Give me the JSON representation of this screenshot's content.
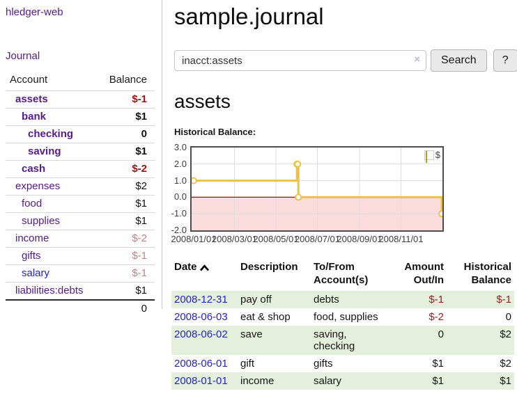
{
  "sidebar": {
    "app_title": "hledger-web",
    "journal_link": "Journal",
    "accounts_table": {
      "headers": [
        "Account",
        "Balance"
      ],
      "rows": [
        {
          "account": "assets",
          "indent": 1,
          "bold": true,
          "balance": "$-1",
          "balance_style": "neg-strong",
          "link": "purple"
        },
        {
          "account": "bank",
          "indent": 2,
          "bold": true,
          "balance": "$1",
          "balance_style": "pos",
          "link": "purple"
        },
        {
          "account": "checking",
          "indent": 3,
          "bold": true,
          "balance": "0",
          "balance_style": "pos",
          "link": "purple"
        },
        {
          "account": "saving",
          "indent": 3,
          "bold": true,
          "balance": "$1",
          "balance_style": "pos",
          "link": "purple"
        },
        {
          "account": "cash",
          "indent": 2,
          "bold": true,
          "balance": "$-2",
          "balance_style": "neg-strong",
          "link": "purple"
        },
        {
          "account": "expenses",
          "indent": 1,
          "bold": false,
          "balance": "$2",
          "balance_style": "pos",
          "link": "purple"
        },
        {
          "account": "food",
          "indent": 2,
          "bold": false,
          "balance": "$1",
          "balance_style": "pos",
          "link": "purple"
        },
        {
          "account": "supplies",
          "indent": 2,
          "bold": false,
          "balance": "$1",
          "balance_style": "pos",
          "link": "purple"
        },
        {
          "account": "income",
          "indent": 1,
          "bold": false,
          "balance": "$-2",
          "balance_style": "neg-soft",
          "link": "purple"
        },
        {
          "account": "gifts",
          "indent": 2,
          "bold": false,
          "balance": "$-1",
          "balance_style": "neg-soft",
          "link": "purple"
        },
        {
          "account": "salary",
          "indent": 2,
          "bold": false,
          "balance": "$-1",
          "balance_style": "neg-soft",
          "link": "blue"
        },
        {
          "account": "liabilities:debts",
          "indent": 1,
          "bold": false,
          "balance": "$1",
          "balance_style": "pos",
          "link": "purple"
        }
      ],
      "total": "0"
    }
  },
  "header": {
    "title": "sample.journal"
  },
  "search": {
    "value": "inacct:assets",
    "clear_icon": "×",
    "button_label": "Search",
    "help_label": "?"
  },
  "account_page": {
    "title": "assets",
    "chart_label": "Historical Balance:"
  },
  "chart_data": {
    "type": "line",
    "style": "step",
    "title": "Historical Balance:",
    "legend_position": "top-right",
    "grid": true,
    "series": [
      {
        "name": "$",
        "color": "#edc240",
        "points": [
          [
            "2008-01-01",
            1
          ],
          [
            "2008-06-01",
            2
          ],
          [
            "2008-06-02",
            2
          ],
          [
            "2008-06-03",
            0
          ],
          [
            "2008-12-31",
            -1
          ]
        ]
      }
    ],
    "ylim": [
      -2,
      3
    ],
    "y_ticks": [
      "3.0",
      "2.0",
      "1.0",
      "0.0",
      "-1.0",
      "-2.0"
    ],
    "x_ticks": [
      {
        "date": "2008-01-01",
        "label": "2008/01/01"
      },
      {
        "date": "2008-03-01",
        "label": "2008/03/01"
      },
      {
        "date": "2008-05-01",
        "label": "2008/05/01"
      },
      {
        "date": "2008-07-01",
        "label": "2008/07/01"
      },
      {
        "date": "2008-09-01",
        "label": "2008/09/01"
      },
      {
        "date": "2008-11-01",
        "label": "2008/11/01"
      }
    ],
    "x_range": [
      "2007-12-29",
      "2009-01-01"
    ],
    "negative_region_fill": "#fadcdc",
    "zero_line_color": "#8c1717",
    "gridline_color": "#dcdcdc"
  },
  "register_table": {
    "headers": [
      {
        "label": "Date",
        "sort_indicator": "ascending"
      },
      {
        "label": "Description"
      },
      {
        "label": "To/From Account(s)"
      },
      {
        "label": "Amount Out/In"
      },
      {
        "label": "Historical Balance"
      }
    ],
    "rows": [
      {
        "date": "2008-12-31",
        "description": "pay off",
        "accounts": "debts",
        "amount": "$-1",
        "amount_neg": true,
        "balance": "$-1",
        "balance_neg": true
      },
      {
        "date": "2008-06-03",
        "description": "eat & shop",
        "accounts": "food, supplies",
        "amount": "$-2",
        "amount_neg": true,
        "balance": "0",
        "balance_neg": false
      },
      {
        "date": "2008-06-02",
        "description": "save",
        "accounts": "saving, checking",
        "amount": "0",
        "amount_neg": false,
        "balance": "$2",
        "balance_neg": false
      },
      {
        "date": "2008-06-01",
        "description": "gift",
        "accounts": "gifts",
        "amount": "$1",
        "amount_neg": false,
        "balance": "$2",
        "balance_neg": false
      },
      {
        "date": "2008-01-01",
        "description": "income",
        "accounts": "salary",
        "amount": "$1",
        "amount_neg": false,
        "balance": "$1",
        "balance_neg": false
      }
    ]
  },
  "colors": {
    "link_purple": "#551a8b",
    "link_blue": "#2222cc",
    "negative_strong": "#a01212",
    "negative_soft": "#c08484",
    "table_negative": "#942222",
    "row_stripe_green": "#e4f0dc",
    "chart_line_gold": "#edc240",
    "chart_negative_fill": "#fadcdc",
    "chart_zero_line": "#8c1717",
    "button_background": "#e9e9e9"
  }
}
